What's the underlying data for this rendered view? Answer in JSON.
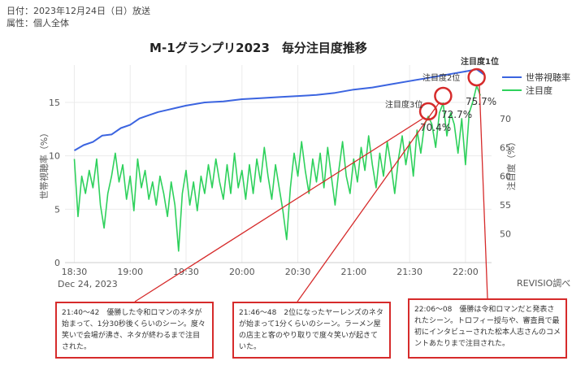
{
  "meta": {
    "date_line": "日付：2023年12月24日（日）放送",
    "attribute_line": "属性：個人全体"
  },
  "source": "REVISIO調べ",
  "chart_data": {
    "type": "line",
    "title": "M-1グランプリ2023　毎分注目度推移",
    "date_label": "Dec 24, 2023",
    "x_ticks": [
      "18:30",
      "19:00",
      "19:30",
      "20:00",
      "20:30",
      "21:00",
      "21:30",
      "22:00"
    ],
    "x_range": [
      "18:25",
      "22:14"
    ],
    "y_left": {
      "label": "世帯視聴率（%）",
      "ticks": [
        0,
        5,
        10,
        15
      ],
      "range": [
        0,
        18.5
      ]
    },
    "y_right": {
      "label": "注目度（%）",
      "ticks": [
        50,
        55,
        60,
        65,
        70
      ],
      "range": [
        45,
        79.3
      ]
    },
    "grid": true,
    "legend_position": "top-right",
    "colors": {
      "household": "#3b64e0",
      "attention": "#2ed15c",
      "annotation": "#d62b2b"
    },
    "series": [
      {
        "name": "世帯視聴率",
        "axis": "left",
        "points": [
          [
            "18:30",
            10.5
          ],
          [
            "18:35",
            11.0
          ],
          [
            "18:40",
            11.3
          ],
          [
            "18:45",
            11.9
          ],
          [
            "18:50",
            12.0
          ],
          [
            "18:55",
            12.6
          ],
          [
            "19:00",
            12.9
          ],
          [
            "19:05",
            13.5
          ],
          [
            "19:10",
            13.8
          ],
          [
            "19:15",
            14.1
          ],
          [
            "19:20",
            14.3
          ],
          [
            "19:25",
            14.5
          ],
          [
            "19:30",
            14.7
          ],
          [
            "19:40",
            15.0
          ],
          [
            "19:50",
            15.1
          ],
          [
            "20:00",
            15.3
          ],
          [
            "20:10",
            15.4
          ],
          [
            "20:20",
            15.5
          ],
          [
            "20:30",
            15.6
          ],
          [
            "20:40",
            15.7
          ],
          [
            "20:50",
            15.9
          ],
          [
            "21:00",
            16.2
          ],
          [
            "21:10",
            16.4
          ],
          [
            "21:20",
            16.7
          ],
          [
            "21:30",
            17.0
          ],
          [
            "21:40",
            17.3
          ],
          [
            "21:50",
            17.6
          ],
          [
            "22:00",
            17.9
          ],
          [
            "22:06",
            18.1
          ],
          [
            "22:10",
            17.6
          ]
        ]
      },
      {
        "name": "注目度",
        "axis": "right",
        "points": [
          [
            "18:30",
            63.0
          ],
          [
            "18:32",
            53.0
          ],
          [
            "18:34",
            60.0
          ],
          [
            "18:36",
            57.0
          ],
          [
            "18:38",
            61.0
          ],
          [
            "18:40",
            58.0
          ],
          [
            "18:42",
            63.0
          ],
          [
            "18:44",
            55.0
          ],
          [
            "18:46",
            51.0
          ],
          [
            "18:48",
            57.0
          ],
          [
            "18:50",
            60.0
          ],
          [
            "18:52",
            64.0
          ],
          [
            "18:54",
            59.0
          ],
          [
            "18:56",
            62.0
          ],
          [
            "18:58",
            56.0
          ],
          [
            "19:00",
            60.0
          ],
          [
            "19:02",
            54.0
          ],
          [
            "19:04",
            63.0
          ],
          [
            "19:06",
            58.0
          ],
          [
            "19:08",
            61.0
          ],
          [
            "19:10",
            56.0
          ],
          [
            "19:12",
            59.0
          ],
          [
            "19:14",
            55.0
          ],
          [
            "19:16",
            60.0
          ],
          [
            "19:18",
            57.0
          ],
          [
            "19:20",
            53.0
          ],
          [
            "19:22",
            59.0
          ],
          [
            "19:24",
            55.0
          ],
          [
            "19:26",
            47.0
          ],
          [
            "19:28",
            57.0
          ],
          [
            "19:30",
            61.0
          ],
          [
            "19:32",
            55.0
          ],
          [
            "19:34",
            59.0
          ],
          [
            "19:36",
            54.0
          ],
          [
            "19:38",
            60.0
          ],
          [
            "19:40",
            57.0
          ],
          [
            "19:42",
            62.0
          ],
          [
            "19:44",
            58.0
          ],
          [
            "19:46",
            63.0
          ],
          [
            "19:48",
            59.0
          ],
          [
            "19:50",
            56.0
          ],
          [
            "19:52",
            62.0
          ],
          [
            "19:54",
            57.0
          ],
          [
            "19:56",
            64.0
          ],
          [
            "19:58",
            58.0
          ],
          [
            "20:00",
            61.0
          ],
          [
            "20:02",
            56.0
          ],
          [
            "20:04",
            62.0
          ],
          [
            "20:06",
            57.0
          ],
          [
            "20:08",
            63.0
          ],
          [
            "20:10",
            59.0
          ],
          [
            "20:12",
            65.0
          ],
          [
            "20:14",
            60.0
          ],
          [
            "20:16",
            56.0
          ],
          [
            "20:18",
            62.0
          ],
          [
            "20:20",
            58.0
          ],
          [
            "20:22",
            54.0
          ],
          [
            "20:24",
            49.0
          ],
          [
            "20:26",
            58.0
          ],
          [
            "20:28",
            64.0
          ],
          [
            "20:30",
            60.0
          ],
          [
            "20:32",
            66.0
          ],
          [
            "20:34",
            61.0
          ],
          [
            "20:36",
            57.0
          ],
          [
            "20:38",
            63.0
          ],
          [
            "20:40",
            59.0
          ],
          [
            "20:42",
            64.0
          ],
          [
            "20:44",
            58.0
          ],
          [
            "20:46",
            65.0
          ],
          [
            "20:48",
            60.0
          ],
          [
            "20:50",
            55.0
          ],
          [
            "20:52",
            61.0
          ],
          [
            "20:54",
            66.0
          ],
          [
            "20:56",
            60.0
          ],
          [
            "20:58",
            57.0
          ],
          [
            "21:00",
            63.0
          ],
          [
            "21:02",
            59.0
          ],
          [
            "21:04",
            65.0
          ],
          [
            "21:06",
            61.0
          ],
          [
            "21:08",
            67.0
          ],
          [
            "21:10",
            62.0
          ],
          [
            "21:12",
            58.0
          ],
          [
            "21:14",
            64.0
          ],
          [
            "21:16",
            60.0
          ],
          [
            "21:18",
            66.0
          ],
          [
            "21:20",
            62.0
          ],
          [
            "21:22",
            57.0
          ],
          [
            "21:24",
            63.0
          ],
          [
            "21:26",
            67.0
          ],
          [
            "21:28",
            62.0
          ],
          [
            "21:30",
            66.0
          ],
          [
            "21:32",
            60.0
          ],
          [
            "21:34",
            68.0
          ],
          [
            "21:36",
            64.0
          ],
          [
            "21:38",
            69.0
          ],
          [
            "21:40",
            70.4
          ],
          [
            "21:42",
            69.0
          ],
          [
            "21:44",
            65.0
          ],
          [
            "21:46",
            71.0
          ],
          [
            "21:48",
            72.7
          ],
          [
            "21:50",
            67.0
          ],
          [
            "21:52",
            71.0
          ],
          [
            "21:54",
            69.0
          ],
          [
            "21:56",
            64.0
          ],
          [
            "21:58",
            70.0
          ],
          [
            "22:00",
            62.0
          ],
          [
            "22:02",
            71.0
          ],
          [
            "22:04",
            73.0
          ],
          [
            "22:06",
            75.7
          ],
          [
            "22:08",
            74.0
          ]
        ]
      }
    ],
    "annotations": [
      {
        "label": "注目度3位",
        "value": "70.4%",
        "time": "21:40",
        "level": 70.4
      },
      {
        "label": "注目度2位",
        "value": "72.7%",
        "time": "21:48",
        "level": 72.7
      },
      {
        "label": "注目度1位",
        "value": "75.7%",
        "time": "22:06",
        "level": 75.7
      }
    ],
    "notes": [
      "21:40～42　優勝した令和ロマンのネタが始まって、1分30秒後くらいのシーン。度々笑いで会場が沸き、ネタが終わるまで注目された。",
      "21:46～48　2位になったヤーレンズのネタが始まって1分くらいのシーン。ラーメン屋の店主と客のやり取りで度々笑いが起きていた。",
      "22:06～08　優勝は令和ロマンだと発表されたシーン。トロフィー授与や、審査員で最初にインタビューされた松本人志さんのコメントあたりまで注目された。"
    ]
  }
}
